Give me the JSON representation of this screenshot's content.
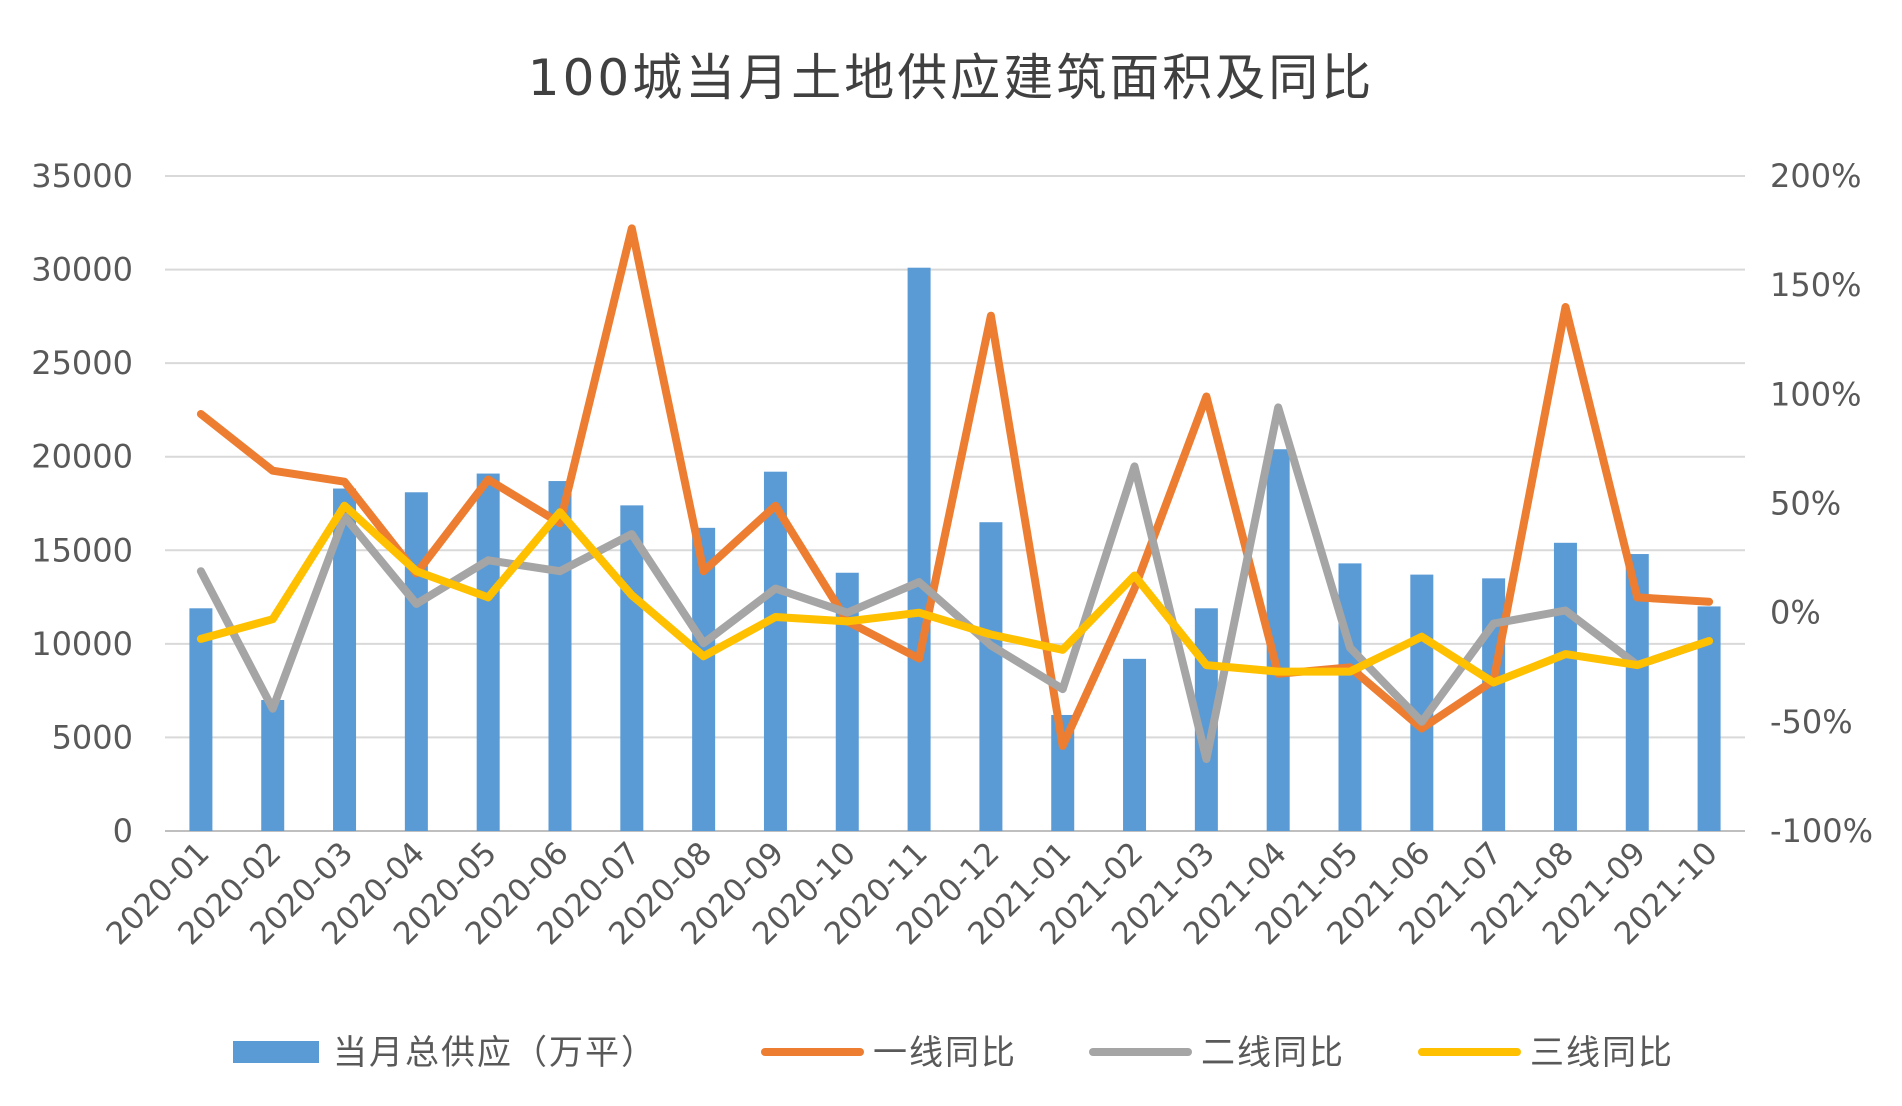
{
  "chart_data": {
    "type": "bar+line",
    "title": "100城当月土地供应建筑面积及同比",
    "categories": [
      "2020-01",
      "2020-02",
      "2020-03",
      "2020-04",
      "2020-05",
      "2020-06",
      "2020-07",
      "2020-08",
      "2020-09",
      "2020-10",
      "2020-11",
      "2020-12",
      "2021-01",
      "2021-02",
      "2021-03",
      "2021-04",
      "2021-05",
      "2021-06",
      "2021-07",
      "2021-08",
      "2021-09",
      "2021-10"
    ],
    "y_left": {
      "min": 0,
      "max": 35000,
      "ticks": [
        0,
        5000,
        10000,
        15000,
        20000,
        25000,
        30000,
        35000
      ],
      "tick_labels": [
        "0",
        "5000",
        "10000",
        "15000",
        "20000",
        "25000",
        "30000",
        "35000"
      ]
    },
    "y_right": {
      "min": -100,
      "max": 200,
      "ticks": [
        -100,
        -50,
        0,
        50,
        100,
        150,
        200
      ],
      "tick_labels": [
        "-100%",
        "-50%",
        "0%",
        "50%",
        "100%",
        "150%",
        "200%"
      ]
    },
    "grid": true,
    "legend_position": "bottom",
    "bar_series": {
      "name": "当月总供应（万平）",
      "color": "#5b9bd5",
      "axis": "left",
      "values": [
        11900,
        7000,
        18300,
        18100,
        19100,
        18700,
        17400,
        16200,
        19200,
        13800,
        30100,
        16500,
        6200,
        9200,
        11900,
        20400,
        14300,
        13700,
        13500,
        15400,
        14800,
        12000
      ]
    },
    "line_series": [
      {
        "name": "一线同比",
        "color": "#ed7d31",
        "axis": "right",
        "values": [
          91,
          65,
          60,
          18,
          61,
          41,
          176,
          19,
          49,
          -4,
          -21,
          136,
          -61,
          11,
          99,
          -28,
          -25,
          -53,
          -31,
          140,
          7,
          5
        ]
      },
      {
        "name": "二线同比",
        "color": "#a5a5a5",
        "axis": "right",
        "values": [
          19,
          -44,
          44,
          4,
          24,
          19,
          36,
          -14,
          11,
          0,
          14,
          -15,
          -35,
          67,
          -67,
          94,
          -16,
          -50,
          -5,
          1,
          -24,
          -13
        ]
      },
      {
        "name": "三线同比",
        "color": "#ffc000",
        "axis": "right",
        "values": [
          -12,
          -3,
          49,
          19,
          7,
          46,
          8,
          -20,
          -2,
          -4,
          0,
          -10,
          -17,
          17,
          -24,
          -27,
          -27,
          -11,
          -32,
          -19,
          -24,
          -13
        ]
      }
    ]
  }
}
